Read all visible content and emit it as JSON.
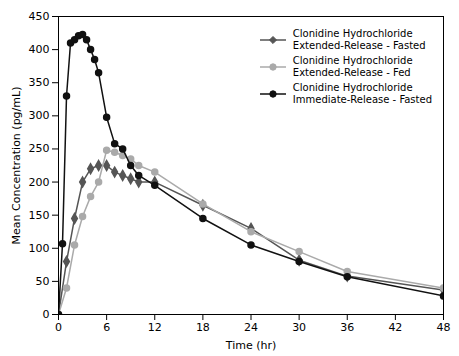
{
  "chart_data": {
    "type": "line",
    "xlabel": "Time (hr)",
    "ylabel": "Mean Concentration (pg/mL)",
    "xlim": [
      0,
      48
    ],
    "ylim": [
      0,
      450
    ],
    "xticks": [
      0,
      6,
      12,
      18,
      24,
      30,
      36,
      42,
      48
    ],
    "yticks": [
      0,
      50,
      100,
      150,
      200,
      250,
      300,
      350,
      400,
      450
    ],
    "grid": false,
    "legend": "upper right",
    "series": [
      {
        "name": "Clonidine Hydrochloride\nExtended-Release - Fasted",
        "color": "#555555",
        "marker": "diamond",
        "x": [
          0,
          1,
          2,
          3,
          4,
          5,
          6,
          7,
          8,
          9,
          10,
          12,
          18,
          24,
          30,
          36,
          48
        ],
        "values": [
          0,
          80,
          145,
          200,
          220,
          225,
          225,
          215,
          210,
          205,
          200,
          200,
          165,
          130,
          82,
          58,
          37
        ]
      },
      {
        "name": "Clonidine Hydrochloride\nExtended-Release - Fed",
        "color": "#aaaaaa",
        "marker": "circle",
        "x": [
          0,
          1,
          2,
          3,
          4,
          5,
          6,
          7,
          8,
          9,
          10,
          12,
          18,
          24,
          30,
          36,
          48
        ],
        "values": [
          0,
          40,
          105,
          148,
          178,
          200,
          248,
          245,
          240,
          235,
          225,
          215,
          167,
          125,
          95,
          65,
          40
        ]
      },
      {
        "name": "Clonidine Hydrochloride\nImmediate-Release - Fasted",
        "color": "#111111",
        "marker": "circle",
        "x": [
          0,
          0.5,
          1,
          1.5,
          2,
          2.5,
          3,
          3.5,
          4,
          4.5,
          5,
          6,
          7,
          8,
          9,
          10,
          12,
          18,
          24,
          30,
          36,
          48
        ],
        "values": [
          0,
          107,
          330,
          410,
          415,
          421,
          423,
          415,
          400,
          385,
          365,
          298,
          258,
          250,
          225,
          210,
          195,
          145,
          105,
          80,
          57,
          28
        ]
      }
    ]
  }
}
